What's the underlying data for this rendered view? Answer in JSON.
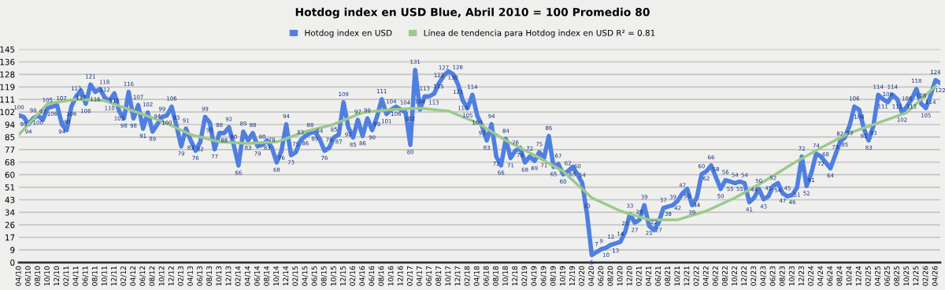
{
  "chart_data": {
    "type": "line",
    "title": "Hotdog index en USD Blue, Abril 2010 = 100 Promedio 80",
    "series": [
      {
        "name": "Hotdog index en USD",
        "color": "#4f7fe0",
        "x": [
          "2010-04",
          "2010-05",
          "2010-06",
          "2010-07",
          "2010-08",
          "2010-09",
          "2010-10",
          "2010-11",
          "2010-12",
          "2011-01",
          "2011-02",
          "2011-03",
          "2011-04",
          "2011-05",
          "2011-06",
          "2011-07",
          "2011-08",
          "2011-09",
          "2011-10",
          "2011-11",
          "2011-12",
          "2012-01",
          "2012-02",
          "2012-03",
          "2012-04",
          "2012-05",
          "2012-06",
          "2012-07",
          "2012-08",
          "2012-09",
          "2012-10",
          "2012-11",
          "2012-12",
          "2013-01",
          "2013-02",
          "2013-03",
          "2013-04",
          "2013-05",
          "2013-06",
          "2013-07",
          "2013-08",
          "2013-09",
          "2013-10",
          "2013-11",
          "2013-12",
          "2014-01",
          "2014-02",
          "2014-03",
          "2014-04",
          "2014-05",
          "2014-06",
          "2014-07",
          "2014-08",
          "2014-09",
          "2014-10",
          "2014-11",
          "2014-12",
          "2015-01",
          "2015-02",
          "2015-03",
          "2015-04",
          "2015-05",
          "2015-06",
          "2015-07",
          "2015-08",
          "2015-09",
          "2015-10",
          "2015-11",
          "2015-12",
          "2016-01",
          "2016-02",
          "2016-03",
          "2016-04",
          "2016-05",
          "2016-06",
          "2016-07",
          "2016-08",
          "2016-09",
          "2016-10",
          "2016-11",
          "2016-12",
          "2017-01",
          "2017-02",
          "2017-03",
          "2017-04",
          "2017-05",
          "2017-06",
          "2017-07",
          "2017-08",
          "2017-09",
          "2017-10",
          "2017-11",
          "2017-12",
          "2018-01",
          "2018-02",
          "2018-03",
          "2018-04",
          "2018-05",
          "2018-06",
          "2018-07",
          "2018-08",
          "2018-09",
          "2018-10",
          "2018-11",
          "2018-12",
          "2019-01",
          "2019-02",
          "2019-03",
          "2019-04",
          "2019-05",
          "2019-06",
          "2019-07",
          "2019-08",
          "2019-09",
          "2019-10",
          "2019-11",
          "2019-12",
          "2020-01",
          "2020-02",
          "2020-03",
          "2020-04",
          "2020-05",
          "2020-06",
          "2020-07",
          "2020-08",
          "2020-09",
          "2020-10",
          "2020-11",
          "2020-12",
          "2021-01",
          "2021-02",
          "2021-03",
          "2021-04",
          "2021-05",
          "2021-06",
          "2021-07",
          "2021-08",
          "2021-09",
          "2021-10",
          "2021-11",
          "2021-12",
          "2022-01",
          "2022-02",
          "2022-03",
          "2022-04",
          "2022-05",
          "2022-06",
          "2022-07",
          "2022-08",
          "2022-09",
          "2022-10",
          "2022-11",
          "2022-12",
          "2023-01",
          "2023-02",
          "2023-03",
          "2023-04",
          "2023-05",
          "2023-06",
          "2023-07",
          "2023-08",
          "2023-09",
          "2023-10",
          "2023-11",
          "2023-12",
          "2024-01",
          "2024-02",
          "2024-03",
          "2024-04",
          "2024-05",
          "2024-06",
          "2024-07",
          "2024-08",
          "2024-09",
          "2024-10",
          "2024-11",
          "2024-12",
          "2025-01",
          "2025-02",
          "2025-03",
          "2025-04",
          "2025-05",
          "2025-06",
          "2025-07",
          "2025-08",
          "2025-09",
          "2025-10",
          "2025-11",
          "2025-12",
          "2026-01",
          "2026-02",
          "2026-03",
          "2026-04",
          "2026-05"
        ],
        "values": [
          100,
          99,
          94,
          98,
          100,
          97,
          105,
          106,
          107,
          94,
          90,
          106,
          113,
          117,
          108,
          121,
          116,
          118,
          112,
          110,
          115,
          103,
          98,
          116,
          98,
          107,
          91,
          102,
          89,
          94,
          99,
          100,
          106,
          93,
          79,
          91,
          83,
          76,
          82,
          99,
          95,
          77,
          88,
          88,
          92,
          80,
          66,
          89,
          83,
          88,
          79,
          80,
          83,
          78,
          68,
          76,
          94,
          73,
          75,
          83,
          86,
          88,
          89,
          84,
          76,
          78,
          85,
          87,
          109,
          92,
          85,
          97,
          86,
          98,
          90,
          99,
          111,
          101,
          104,
          106,
          104,
          102,
          80,
          131,
          104,
          113,
          113,
          115,
          122,
          127,
          130,
          128,
          121,
          110,
          105,
          114,
          100,
          93,
          83,
          94,
          72,
          66,
          84,
          71,
          76,
          78,
          68,
          72,
          69,
          75,
          71,
          86,
          65,
          67,
          60,
          62,
          65,
          60,
          54,
          33,
          5,
          7,
          9,
          10,
          12,
          13,
          14,
          21,
          33,
          27,
          29,
          39,
          25,
          22,
          27,
          37,
          38,
          39,
          42,
          47,
          50,
          39,
          44,
          60,
          62,
          66,
          58,
          50,
          56,
          55,
          54,
          55,
          54,
          41,
          44,
          50,
          43,
          45,
          52,
          54,
          47,
          45,
          46,
          51,
          72,
          52,
          61,
          74,
          72,
          68,
          64,
          73,
          82,
          85,
          93,
          106,
          104,
          91,
          83,
          93,
          114,
          111,
          109,
          114,
          111,
          102,
          106,
          111,
          118,
          108,
          105,
          114,
          124,
          122
        ],
        "value_labels": [
          "100",
          "99",
          "94",
          "98",
          "100",
          "97",
          "105",
          "106",
          "107",
          "94",
          "90",
          "106",
          "113",
          "117",
          "108",
          "121",
          "116",
          "118",
          "112",
          "110",
          "115",
          "103",
          "98",
          "116",
          "98",
          "107",
          "91",
          "102",
          "89",
          "94",
          "99",
          "100",
          "106",
          "93",
          "79",
          "91",
          "83",
          "76",
          "82",
          "99",
          "95",
          "77",
          "88",
          "88",
          "92",
          "80",
          "66",
          "89",
          "83",
          "88",
          "79",
          "80",
          "83",
          "78",
          "68",
          "76",
          "94",
          "73",
          "75",
          "83",
          "86",
          "88",
          "89",
          "84",
          "76",
          "78",
          "85",
          "87",
          "109",
          "92",
          "85",
          "97",
          "86",
          "98",
          "90",
          "99",
          "111",
          "101",
          "104",
          "106",
          "104",
          "102",
          "80",
          "131",
          "104",
          "113",
          "113",
          "115",
          "122",
          "127",
          "130",
          "128",
          "121",
          "110",
          "105",
          "114",
          "100",
          "93",
          "83",
          "94",
          "72",
          "66",
          "84",
          "71",
          "76",
          "78",
          "68",
          "72",
          "69",
          "75",
          "71",
          "86",
          "65",
          "67",
          "60",
          "62",
          "65",
          "60",
          "54",
          "33",
          "5",
          "7",
          "9",
          "10",
          "12",
          "13",
          "14",
          "21",
          "33",
          "27",
          "29",
          "39",
          "25",
          "22",
          "27",
          "37",
          "38",
          "39",
          "42",
          "47",
          "50",
          "39",
          "44",
          "60",
          "62",
          "66",
          "58",
          "50",
          "56",
          "55",
          "54",
          "55",
          "54",
          "41",
          "44",
          "50",
          "43",
          "45",
          "52",
          "54",
          "47",
          "45",
          "46",
          "51",
          "72",
          "52",
          "61",
          "74",
          "72",
          "68",
          "64",
          "73",
          "82",
          "85",
          "93",
          "106",
          "104",
          "91",
          "83",
          "93",
          "114",
          "111",
          "109",
          "114",
          "111",
          "102",
          "106",
          "111",
          "118",
          "108",
          "105",
          "114",
          "124",
          "122"
        ]
      },
      {
        "name": "Línea de tendencia para Hotdog index en USD R² = 0.81",
        "color": "#9cc98c",
        "x": [
          "2010-04",
          "2010-10",
          "2011-04",
          "2011-10",
          "2012-04",
          "2012-10",
          "2013-04",
          "2013-10",
          "2014-04",
          "2014-10",
          "2015-04",
          "2015-10",
          "2016-04",
          "2016-10",
          "2017-04",
          "2017-10",
          "2018-04",
          "2018-10",
          "2019-04",
          "2019-10",
          "2020-04",
          "2020-10",
          "2021-04",
          "2021-10",
          "2022-04",
          "2022-10",
          "2023-04",
          "2023-10",
          "2024-04",
          "2024-10",
          "2025-04",
          "2025-10",
          "2026-04"
        ],
        "values": [
          87,
          108,
          111,
          110,
          103,
          96,
          87,
          82,
          81,
          82,
          89,
          94,
          102,
          104,
          105,
          103,
          95,
          83,
          73,
          62,
          44,
          35,
          29,
          29,
          35,
          44,
          55,
          67,
          78,
          88,
          95,
          102,
          120
        ]
      }
    ],
    "legend": "top",
    "grid": "y",
    "xlim": [
      "2010-04",
      "2026-05"
    ],
    "xticks": [
      {
        "value": "2010-04",
        "label": "04/10"
      },
      {
        "value": "2010-06",
        "label": "06/10"
      },
      {
        "value": "2010-08",
        "label": "08/10"
      },
      {
        "value": "2010-10",
        "label": "10/10"
      },
      {
        "value": "2010-12",
        "label": "12/10"
      },
      {
        "value": "2011-02",
        "label": "02/11"
      },
      {
        "value": "2011-04",
        "label": "04/11"
      },
      {
        "value": "2011-06",
        "label": "06/11"
      },
      {
        "value": "2011-08",
        "label": "08/11"
      },
      {
        "value": "2011-10",
        "label": "10/11"
      },
      {
        "value": "2011-12",
        "label": "12/11"
      },
      {
        "value": "2012-02",
        "label": "02/12"
      },
      {
        "value": "2012-04",
        "label": "04/12"
      },
      {
        "value": "2012-06",
        "label": "06/12"
      },
      {
        "value": "2012-08",
        "label": "08/12"
      },
      {
        "value": "2012-10",
        "label": "10/12"
      },
      {
        "value": "2012-12",
        "label": "12/12"
      },
      {
        "value": "2013-02",
        "label": "02/13"
      },
      {
        "value": "2013-04",
        "label": "04/13"
      },
      {
        "value": "2013-06",
        "label": "06/13"
      },
      {
        "value": "2013-08",
        "label": "08/13"
      },
      {
        "value": "2013-10",
        "label": "10/13"
      },
      {
        "value": "2013-12",
        "label": "12/13"
      },
      {
        "value": "2014-02",
        "label": "02/14"
      },
      {
        "value": "2014-04",
        "label": "04/14"
      },
      {
        "value": "2014-06",
        "label": "06/14"
      },
      {
        "value": "2014-08",
        "label": "08/14"
      },
      {
        "value": "2014-10",
        "label": "10/14"
      },
      {
        "value": "2014-12",
        "label": "12/14"
      },
      {
        "value": "2015-02",
        "label": "02/15"
      },
      {
        "value": "2015-04",
        "label": "04/15"
      },
      {
        "value": "2015-06",
        "label": "06/15"
      },
      {
        "value": "2015-08",
        "label": "08/15"
      },
      {
        "value": "2015-10",
        "label": "10/15"
      },
      {
        "value": "2015-12",
        "label": "12/15"
      },
      {
        "value": "2016-02",
        "label": "02/16"
      },
      {
        "value": "2016-04",
        "label": "04/16"
      },
      {
        "value": "2016-06",
        "label": "06/16"
      },
      {
        "value": "2016-08",
        "label": "08/16"
      },
      {
        "value": "2016-10",
        "label": "10/16"
      },
      {
        "value": "2016-12",
        "label": "12/16"
      },
      {
        "value": "2017-02",
        "label": "02/17"
      },
      {
        "value": "2017-04",
        "label": "04/17"
      },
      {
        "value": "2017-06",
        "label": "06/17"
      },
      {
        "value": "2017-08",
        "label": "08/17"
      },
      {
        "value": "2017-10",
        "label": "10/17"
      },
      {
        "value": "2017-12",
        "label": "12/17"
      },
      {
        "value": "2018-02",
        "label": "02/18"
      },
      {
        "value": "2018-04",
        "label": "04/18"
      },
      {
        "value": "2018-06",
        "label": "06/18"
      },
      {
        "value": "2018-08",
        "label": "08/18"
      },
      {
        "value": "2018-10",
        "label": "10/18"
      },
      {
        "value": "2018-12",
        "label": "12/18"
      },
      {
        "value": "2019-02",
        "label": "02/19"
      },
      {
        "value": "2019-04",
        "label": "04/19"
      },
      {
        "value": "2019-06",
        "label": "06/19"
      },
      {
        "value": "2019-08",
        "label": "08/19"
      },
      {
        "value": "2019-10",
        "label": "10/19"
      },
      {
        "value": "2019-12",
        "label": "12/19"
      },
      {
        "value": "2020-02",
        "label": "02/20"
      },
      {
        "value": "2020-04",
        "label": "04/20"
      },
      {
        "value": "2020-06",
        "label": "06/20"
      },
      {
        "value": "2020-08",
        "label": "08/20"
      },
      {
        "value": "2020-10",
        "label": "10/20"
      },
      {
        "value": "2020-12",
        "label": "12/20"
      },
      {
        "value": "2021-02",
        "label": "02/21"
      },
      {
        "value": "2021-04",
        "label": "04/21"
      },
      {
        "value": "2021-06",
        "label": "06/21"
      },
      {
        "value": "2021-08",
        "label": "08/21"
      },
      {
        "value": "2021-10",
        "label": "10/21"
      },
      {
        "value": "2021-12",
        "label": "12/21"
      },
      {
        "value": "2022-02",
        "label": "02/22"
      },
      {
        "value": "2022-04",
        "label": "04/22"
      },
      {
        "value": "2022-06",
        "label": "06/22"
      },
      {
        "value": "2022-08",
        "label": "08/22"
      },
      {
        "value": "2022-10",
        "label": "10/22"
      },
      {
        "value": "2022-12",
        "label": "12/22"
      },
      {
        "value": "2023-02",
        "label": "02/23"
      },
      {
        "value": "2023-04",
        "label": "04/23"
      },
      {
        "value": "2023-06",
        "label": "06/23"
      },
      {
        "value": "2023-08",
        "label": "08/23"
      },
      {
        "value": "2023-10",
        "label": "10/23"
      },
      {
        "value": "2023-12",
        "label": "12/23"
      },
      {
        "value": "2024-02",
        "label": "02/24"
      },
      {
        "value": "2024-04",
        "label": "04/24"
      },
      {
        "value": "2024-06",
        "label": "06/24"
      },
      {
        "value": "2024-08",
        "label": "08/24"
      },
      {
        "value": "2024-10",
        "label": "10/24"
      },
      {
        "value": "2024-12",
        "label": "12/24"
      },
      {
        "value": "2025-02",
        "label": "02/25"
      },
      {
        "value": "2025-04",
        "label": "04/25"
      },
      {
        "value": "2025-06",
        "label": "06/25"
      },
      {
        "value": "2025-08",
        "label": "08/25"
      },
      {
        "value": "2025-10",
        "label": "10/25"
      },
      {
        "value": "2025-12",
        "label": "12/25"
      },
      {
        "value": "2026-02",
        "label": "02/26"
      },
      {
        "value": "2026-04",
        "label": "04/26"
      }
    ],
    "ylim": [
      0,
      145
    ],
    "yticks": [
      0,
      {
        "value": 8.53,
        "label": "9"
      },
      {
        "value": 17.06,
        "label": "17"
      },
      {
        "value": 25.59,
        "label": "26"
      },
      {
        "value": 34.12,
        "label": "34"
      },
      {
        "value": 42.65,
        "label": "43"
      },
      {
        "value": 51.18,
        "label": "51"
      },
      {
        "value": 59.71,
        "label": "60"
      },
      {
        "value": 68.24,
        "label": "68"
      },
      {
        "value": 76.76,
        "label": "77"
      },
      {
        "value": 85.29,
        "label": "85"
      },
      {
        "value": 93.82,
        "label": "94"
      },
      {
        "value": 102.35,
        "label": "102"
      },
      {
        "value": 110.88,
        "label": "111"
      },
      {
        "value": 119.41,
        "label": "119"
      },
      {
        "value": 127.94,
        "label": "128"
      },
      {
        "value": 136.47,
        "label": "136"
      },
      145
    ]
  }
}
